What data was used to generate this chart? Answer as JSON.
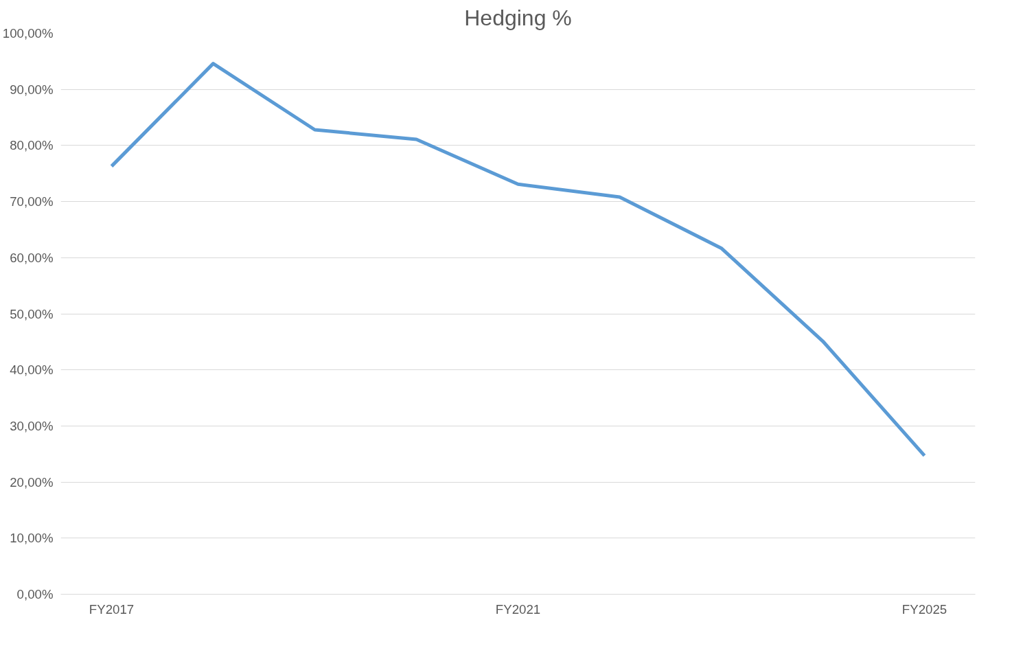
{
  "chart_data": {
    "type": "line",
    "title": "Hedging %",
    "categories": [
      "FY2017",
      null,
      null,
      null,
      "FY2021",
      null,
      null,
      null,
      "FY2025"
    ],
    "series": [
      {
        "color": "#5b9bd5",
        "values": [
          76.3,
          94.6,
          82.8,
          81.1,
          73.1,
          70.8,
          61.7,
          45.1,
          24.7
        ]
      }
    ],
    "ylim": [
      0,
      100
    ],
    "yticks": [
      {
        "value": 0,
        "label": "0,00%"
      },
      {
        "value": 10,
        "label": "10,00%"
      },
      {
        "value": 20,
        "label": "20,00%"
      },
      {
        "value": 30,
        "label": "30,00%"
      },
      {
        "value": 40,
        "label": "40,00%"
      },
      {
        "value": 50,
        "label": "50,00%"
      },
      {
        "value": 60,
        "label": "60,00%"
      },
      {
        "value": 70,
        "label": "70,00%"
      },
      {
        "value": 80,
        "label": "80,00%"
      },
      {
        "value": 90,
        "label": "90,00%"
      },
      {
        "value": 100,
        "label": "100,00%"
      }
    ],
    "grid": "y",
    "marker": "none",
    "line_style": "solid"
  }
}
